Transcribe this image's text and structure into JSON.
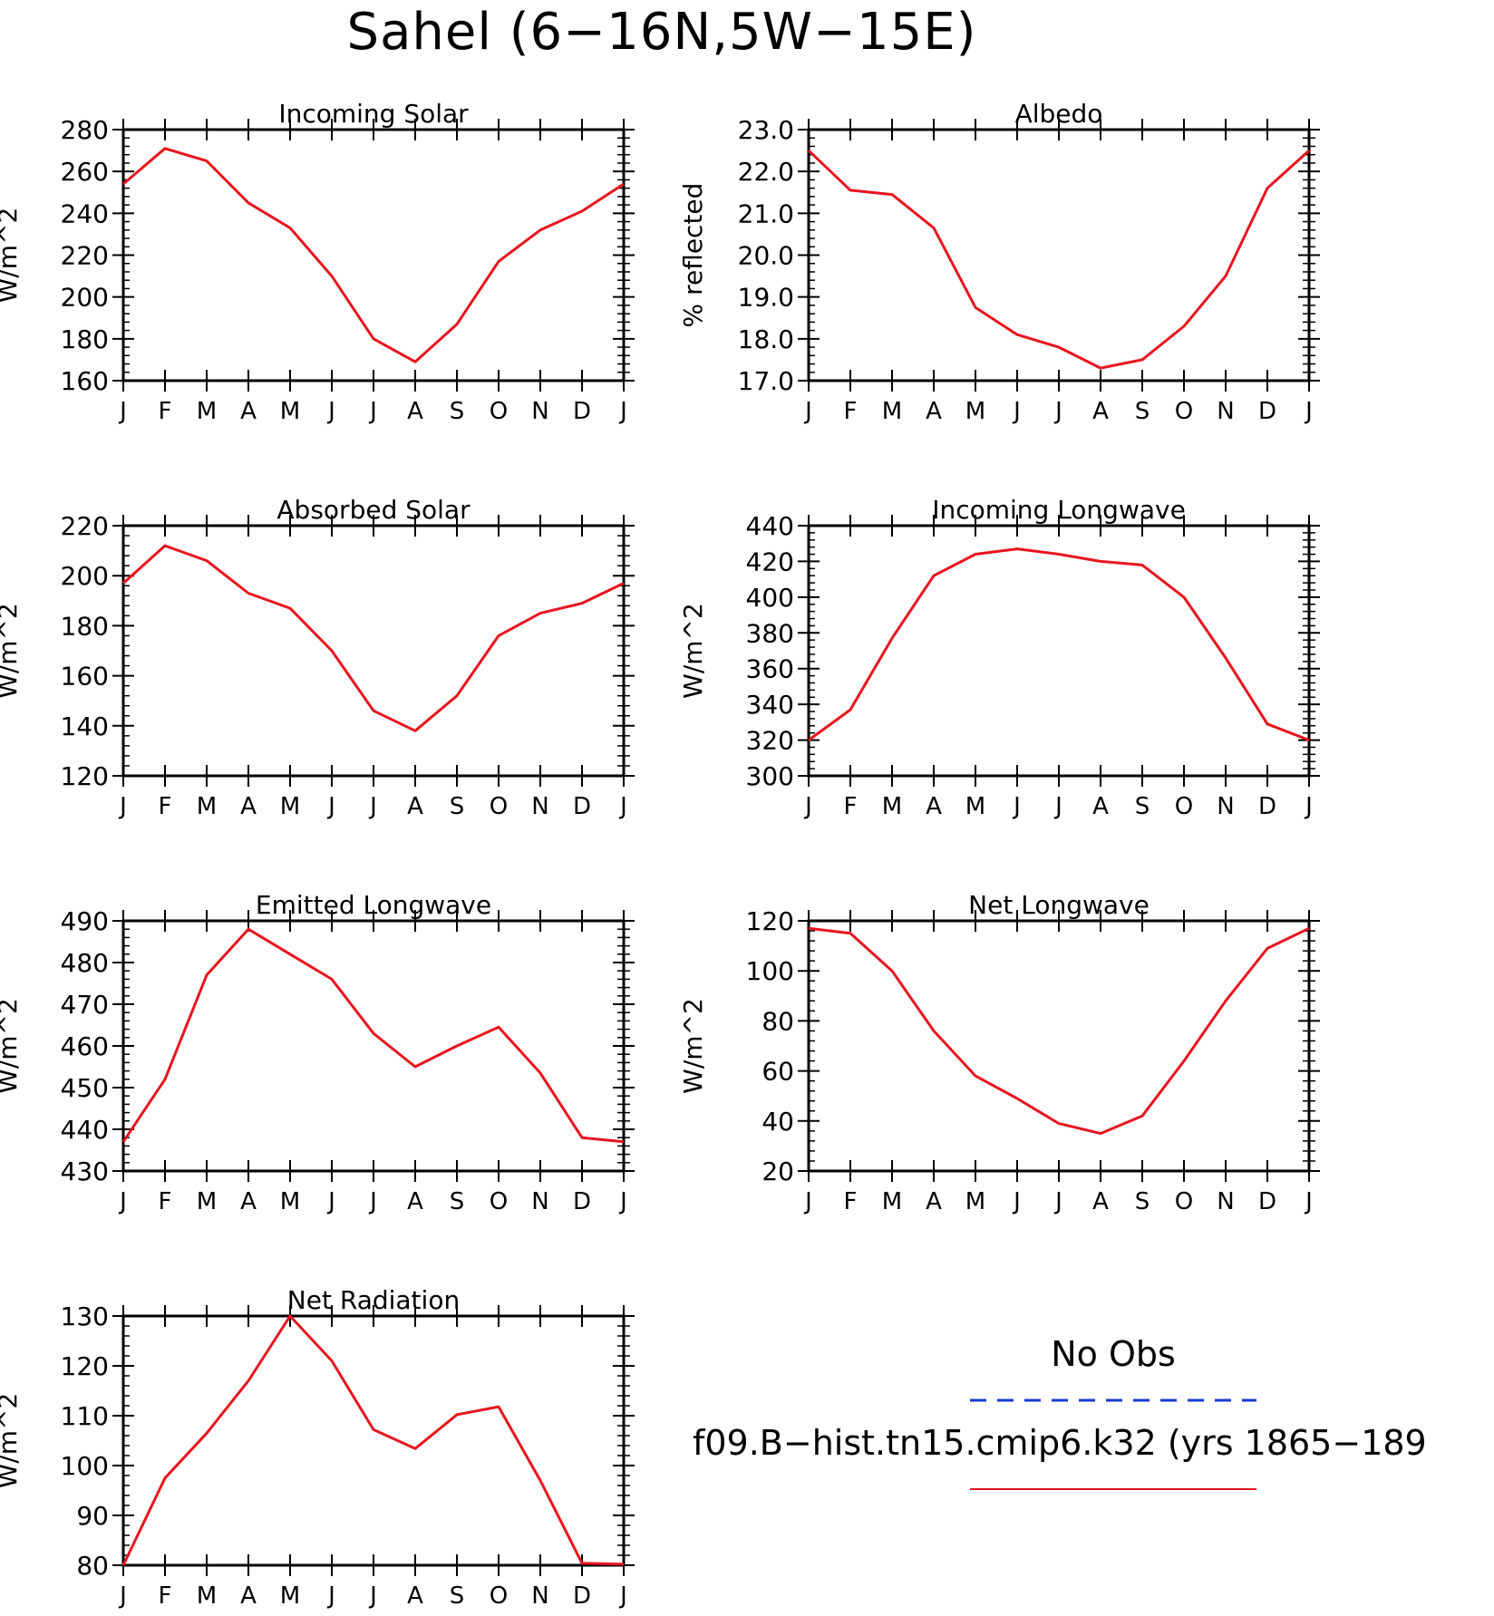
{
  "figure": {
    "title": "Sahel (6-16N,5W-15E)"
  },
  "legend": {
    "obs_label": "No Obs",
    "obs_color": "#1a3adb",
    "model_label": "f09.B-hist.tn15.cmip6.k32 (yrs 1865-189",
    "model_color": "#e8141e"
  },
  "chart_data": [
    {
      "id": "incoming-solar",
      "type": "line",
      "title": "Incoming Solar",
      "ylabel": "W/m^2",
      "x": [
        "J",
        "F",
        "M",
        "A",
        "M",
        "J",
        "J",
        "A",
        "S",
        "O",
        "N",
        "D",
        "J"
      ],
      "ylim": [
        160,
        280
      ],
      "yticks": [
        160,
        180,
        200,
        220,
        240,
        260,
        280
      ],
      "ytick_labels": [
        "160",
        "180",
        "200",
        "220",
        "240",
        "260",
        "280"
      ],
      "series": [
        {
          "values": [
            254,
            271,
            265,
            245,
            233,
            210,
            180,
            169,
            187,
            217,
            232,
            241,
            254
          ]
        }
      ]
    },
    {
      "id": "albedo",
      "type": "line",
      "title": "Albedo",
      "ylabel": "% reflected",
      "x": [
        "J",
        "F",
        "M",
        "A",
        "M",
        "J",
        "J",
        "A",
        "S",
        "O",
        "N",
        "D",
        "J"
      ],
      "ylim": [
        17.0,
        23.0
      ],
      "yticks": [
        17.0,
        18.0,
        19.0,
        20.0,
        21.0,
        22.0,
        23.0
      ],
      "ytick_labels": [
        "17.0",
        "18.0",
        "19.0",
        "20.0",
        "21.0",
        "22.0",
        "23.0"
      ],
      "series": [
        {
          "values": [
            22.5,
            21.55,
            21.45,
            20.65,
            18.75,
            18.1,
            17.8,
            17.3,
            17.5,
            18.3,
            19.5,
            21.6,
            22.5
          ]
        }
      ]
    },
    {
      "id": "absorbed-solar",
      "type": "line",
      "title": "Absorbed Solar",
      "ylabel": "W/m^2",
      "x": [
        "J",
        "F",
        "M",
        "A",
        "M",
        "J",
        "J",
        "A",
        "S",
        "O",
        "N",
        "D",
        "J"
      ],
      "ylim": [
        120,
        220
      ],
      "yticks": [
        120,
        140,
        160,
        180,
        200,
        220
      ],
      "ytick_labels": [
        "120",
        "140",
        "160",
        "180",
        "200",
        "220"
      ],
      "series": [
        {
          "values": [
            197,
            212,
            206,
            193,
            187,
            170,
            146,
            138,
            152,
            176,
            185,
            189,
            197
          ]
        }
      ]
    },
    {
      "id": "incoming-longwave",
      "type": "line",
      "title": "Incoming Longwave",
      "ylabel": "W/m^2",
      "x": [
        "J",
        "F",
        "M",
        "A",
        "M",
        "J",
        "J",
        "A",
        "S",
        "O",
        "N",
        "D",
        "J"
      ],
      "ylim": [
        300,
        440
      ],
      "yticks": [
        300,
        320,
        340,
        360,
        380,
        400,
        420,
        440
      ],
      "ytick_labels": [
        "300",
        "320",
        "340",
        "360",
        "380",
        "400",
        "420",
        "440"
      ],
      "series": [
        {
          "values": [
            320,
            337,
            377,
            412,
            424,
            427,
            424,
            420,
            418,
            400,
            366,
            329,
            320
          ]
        }
      ]
    },
    {
      "id": "emitted-longwave",
      "type": "line",
      "title": "Emitted Longwave",
      "ylabel": "W/m^2",
      "x": [
        "J",
        "F",
        "M",
        "A",
        "M",
        "J",
        "J",
        "A",
        "S",
        "O",
        "N",
        "D",
        "J"
      ],
      "ylim": [
        430,
        490
      ],
      "yticks": [
        430,
        440,
        450,
        460,
        470,
        480,
        490
      ],
      "ytick_labels": [
        "430",
        "440",
        "450",
        "460",
        "470",
        "480",
        "490"
      ],
      "series": [
        {
          "values": [
            437,
            452,
            477,
            488,
            482,
            476,
            463,
            455,
            460,
            464.5,
            453.5,
            438,
            437
          ]
        }
      ]
    },
    {
      "id": "net-longwave",
      "type": "line",
      "title": "Net Longwave",
      "ylabel": "W/m^2",
      "x": [
        "J",
        "F",
        "M",
        "A",
        "M",
        "J",
        "J",
        "A",
        "S",
        "O",
        "N",
        "D",
        "J"
      ],
      "ylim": [
        20,
        120
      ],
      "yticks": [
        20,
        40,
        60,
        80,
        100,
        120
      ],
      "ytick_labels": [
        "20",
        "40",
        "60",
        "80",
        "100",
        "120"
      ],
      "series": [
        {
          "values": [
            117,
            115,
            100,
            76,
            58,
            49,
            39,
            35,
            42,
            64,
            88,
            109,
            117
          ]
        }
      ]
    },
    {
      "id": "net-radiation",
      "type": "line",
      "title": "Net Radiation",
      "ylabel": "W/m^2",
      "x": [
        "J",
        "F",
        "M",
        "A",
        "M",
        "J",
        "J",
        "A",
        "S",
        "O",
        "N",
        "D",
        "J"
      ],
      "ylim": [
        80,
        130
      ],
      "yticks": [
        80,
        90,
        100,
        110,
        120,
        130
      ],
      "ytick_labels": [
        "80",
        "90",
        "100",
        "110",
        "120",
        "130"
      ],
      "series": [
        {
          "values": [
            80,
            97.5,
            106.5,
            117,
            130,
            121,
            107.2,
            103.4,
            110.2,
            111.8,
            97,
            80.4,
            80.2
          ]
        }
      ]
    }
  ]
}
